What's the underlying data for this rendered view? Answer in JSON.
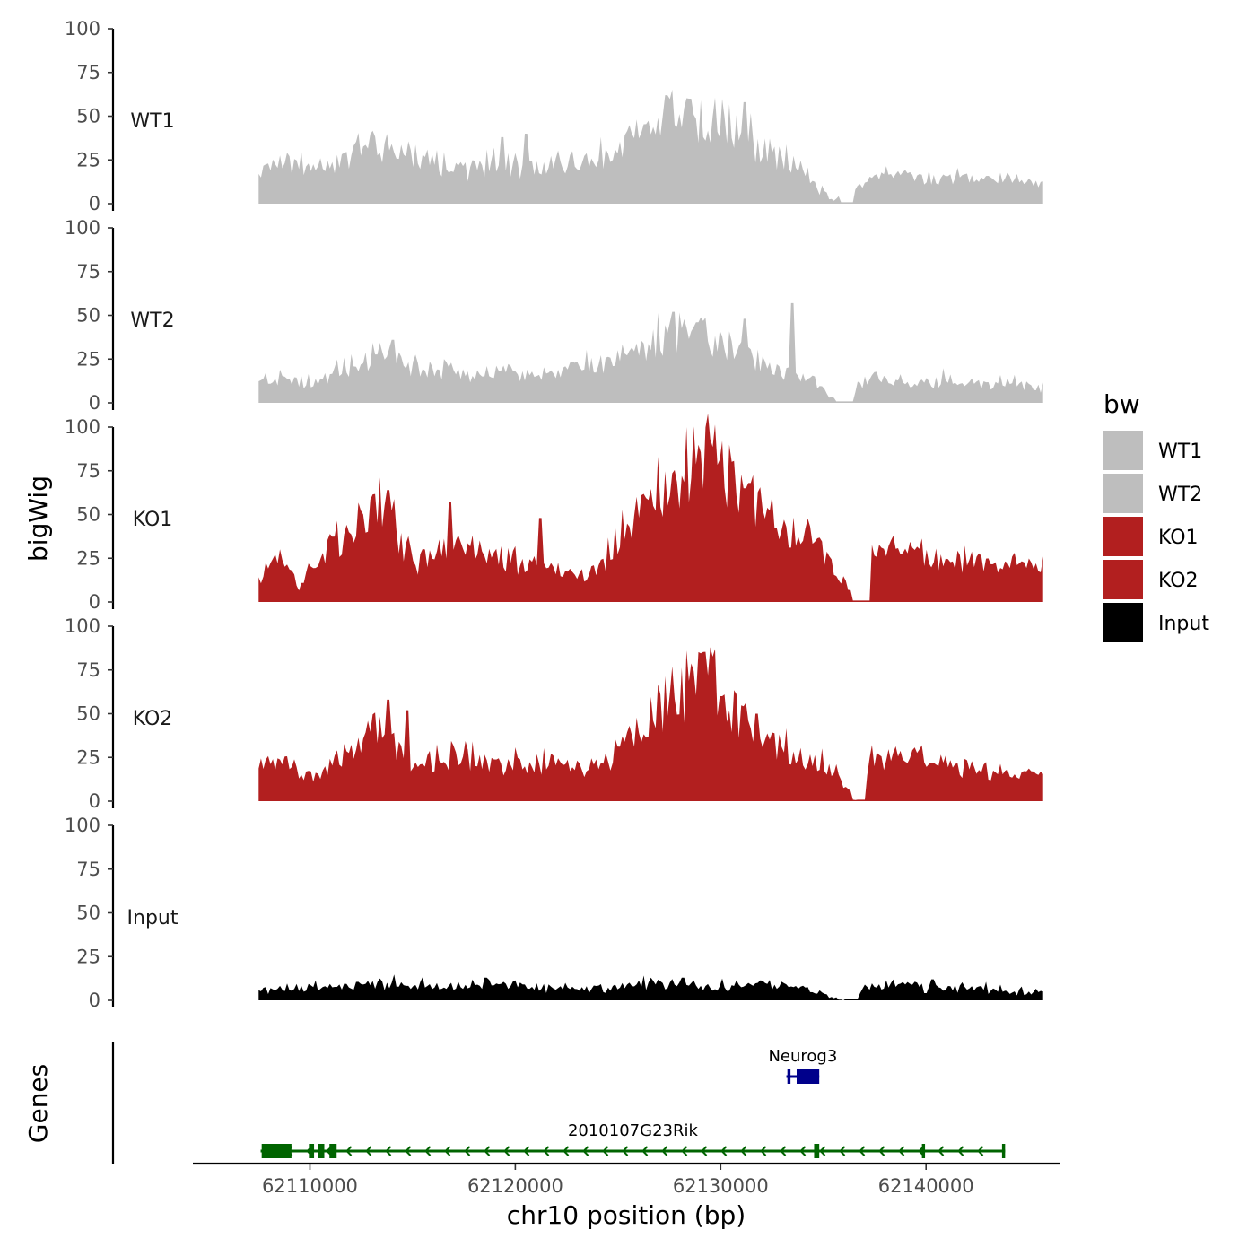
{
  "chart_data": {
    "type": "area",
    "layout": "stacked-tracks",
    "y_axis_title": "bigWig",
    "genes_axis_title": "Genes",
    "x_axis_title": "chr10 position (bp)",
    "x_range": [
      62104300,
      62146500
    ],
    "x_ticks": [
      62110000,
      62120000,
      62130000,
      62140000
    ],
    "x_tick_labels": [
      "62110000",
      "62120000",
      "62130000",
      "62140000"
    ],
    "signal_x_range": [
      62107500,
      62145700
    ],
    "y_range": [
      0,
      100
    ],
    "y_ticks": [
      0,
      25,
      50,
      75,
      100
    ],
    "y_tick_labels": [
      "0",
      "25",
      "50",
      "75",
      "100"
    ],
    "legend": {
      "title": "bw",
      "entries": [
        {
          "label": "WT1",
          "color": "#bebebe"
        },
        {
          "label": "WT2",
          "color": "#bebebe"
        },
        {
          "label": "KO1",
          "color": "#b21f1f"
        },
        {
          "label": "KO2",
          "color": "#b21f1f"
        },
        {
          "label": "Input",
          "color": "#000000"
        }
      ]
    },
    "tracks": [
      {
        "name": "WT1",
        "color": "#bebebe",
        "profile": [
          [
            0,
            18
          ],
          [
            0.03,
            24
          ],
          [
            0.06,
            20
          ],
          [
            0.09,
            22
          ],
          [
            0.12,
            27
          ],
          [
            0.15,
            34
          ],
          [
            0.18,
            28
          ],
          [
            0.21,
            24
          ],
          [
            0.24,
            22
          ],
          [
            0.27,
            19
          ],
          [
            0.3,
            22
          ],
          [
            0.33,
            20
          ],
          [
            0.36,
            17
          ],
          [
            0.39,
            22
          ],
          [
            0.42,
            24
          ],
          [
            0.45,
            27
          ],
          [
            0.48,
            35
          ],
          [
            0.51,
            44
          ],
          [
            0.54,
            50
          ],
          [
            0.57,
            48
          ],
          [
            0.6,
            40
          ],
          [
            0.63,
            34
          ],
          [
            0.66,
            26
          ],
          [
            0.69,
            18
          ],
          [
            0.71,
            10
          ],
          [
            0.73,
            2
          ],
          [
            0.75,
            4
          ],
          [
            0.78,
            14
          ],
          [
            0.81,
            16
          ],
          [
            0.84,
            14
          ],
          [
            0.87,
            13
          ],
          [
            0.9,
            14
          ],
          [
            0.93,
            13
          ],
          [
            0.96,
            14
          ],
          [
            1,
            10
          ]
        ],
        "spikes": [
          [
            0.31,
            38
          ],
          [
            0.62,
            58
          ],
          [
            0.52,
            62
          ],
          [
            0.55,
            60
          ],
          [
            0.34,
            40
          ]
        ],
        "dropouts": [
          [
            0.74,
            0.76
          ]
        ],
        "seed": 11
      },
      {
        "name": "WT2",
        "color": "#bebebe",
        "profile": [
          [
            0,
            12
          ],
          [
            0.03,
            14
          ],
          [
            0.06,
            11
          ],
          [
            0.09,
            15
          ],
          [
            0.12,
            19
          ],
          [
            0.15,
            26
          ],
          [
            0.18,
            23
          ],
          [
            0.21,
            19
          ],
          [
            0.24,
            18
          ],
          [
            0.27,
            17
          ],
          [
            0.3,
            18
          ],
          [
            0.33,
            16
          ],
          [
            0.36,
            15
          ],
          [
            0.39,
            18
          ],
          [
            0.42,
            21
          ],
          [
            0.45,
            24
          ],
          [
            0.48,
            29
          ],
          [
            0.51,
            36
          ],
          [
            0.54,
            42
          ],
          [
            0.57,
            39
          ],
          [
            0.6,
            30
          ],
          [
            0.63,
            24
          ],
          [
            0.66,
            20
          ],
          [
            0.69,
            16
          ],
          [
            0.71,
            11
          ],
          [
            0.73,
            2
          ],
          [
            0.75,
            3
          ],
          [
            0.78,
            14
          ],
          [
            0.81,
            12
          ],
          [
            0.84,
            10
          ],
          [
            0.87,
            12
          ],
          [
            0.9,
            11
          ],
          [
            0.93,
            10
          ],
          [
            0.96,
            12
          ],
          [
            1,
            8
          ]
        ],
        "spikes": [
          [
            0.17,
            36
          ],
          [
            0.68,
            57
          ],
          [
            0.62,
            48
          ],
          [
            0.53,
            52
          ]
        ],
        "dropouts": [
          [
            0.735,
            0.76
          ]
        ],
        "seed": 23
      },
      {
        "name": "KO1",
        "color": "#b21f1f",
        "profile": [
          [
            0,
            15
          ],
          [
            0.03,
            26
          ],
          [
            0.05,
            8
          ],
          [
            0.08,
            26
          ],
          [
            0.1,
            33
          ],
          [
            0.13,
            42
          ],
          [
            0.16,
            52
          ],
          [
            0.18,
            36
          ],
          [
            0.2,
            21
          ],
          [
            0.22,
            26
          ],
          [
            0.25,
            32
          ],
          [
            0.28,
            28
          ],
          [
            0.31,
            24
          ],
          [
            0.34,
            22
          ],
          [
            0.37,
            18
          ],
          [
            0.4,
            16
          ],
          [
            0.42,
            14
          ],
          [
            0.45,
            28
          ],
          [
            0.48,
            44
          ],
          [
            0.51,
            58
          ],
          [
            0.54,
            64
          ],
          [
            0.57,
            82
          ],
          [
            0.6,
            72
          ],
          [
            0.63,
            60
          ],
          [
            0.66,
            45
          ],
          [
            0.69,
            36
          ],
          [
            0.72,
            30
          ],
          [
            0.74,
            14
          ],
          [
            0.76,
            3
          ],
          [
            0.78,
            24
          ],
          [
            0.81,
            28
          ],
          [
            0.84,
            26
          ],
          [
            0.87,
            22
          ],
          [
            0.9,
            21
          ],
          [
            0.93,
            22
          ],
          [
            0.96,
            22
          ],
          [
            1,
            20
          ]
        ],
        "spikes": [
          [
            0.165,
            64
          ],
          [
            0.245,
            57
          ],
          [
            0.625,
            68
          ],
          [
            0.625,
            68
          ],
          [
            0.62,
            65
          ],
          [
            0.36,
            48
          ]
        ],
        "dropouts": [
          [
            0.755,
            0.78
          ]
        ],
        "seed": 37
      },
      {
        "name": "KO2",
        "color": "#b21f1f",
        "profile": [
          [
            0,
            22
          ],
          [
            0.03,
            24
          ],
          [
            0.06,
            16
          ],
          [
            0.08,
            14
          ],
          [
            0.1,
            22
          ],
          [
            0.13,
            34
          ],
          [
            0.16,
            46
          ],
          [
            0.18,
            28
          ],
          [
            0.2,
            16
          ],
          [
            0.22,
            22
          ],
          [
            0.25,
            24
          ],
          [
            0.28,
            22
          ],
          [
            0.31,
            20
          ],
          [
            0.34,
            20
          ],
          [
            0.37,
            22
          ],
          [
            0.4,
            19
          ],
          [
            0.42,
            18
          ],
          [
            0.45,
            24
          ],
          [
            0.48,
            36
          ],
          [
            0.51,
            50
          ],
          [
            0.54,
            60
          ],
          [
            0.57,
            74
          ],
          [
            0.6,
            54
          ],
          [
            0.63,
            42
          ],
          [
            0.66,
            30
          ],
          [
            0.69,
            26
          ],
          [
            0.72,
            22
          ],
          [
            0.74,
            12
          ],
          [
            0.76,
            1
          ],
          [
            0.78,
            24
          ],
          [
            0.81,
            26
          ],
          [
            0.84,
            24
          ],
          [
            0.87,
            22
          ],
          [
            0.9,
            18
          ],
          [
            0.93,
            16
          ],
          [
            0.96,
            15
          ],
          [
            1,
            14
          ]
        ],
        "spikes": [
          [
            0.165,
            58
          ],
          [
            0.19,
            52
          ],
          [
            0.635,
            50
          ],
          [
            0.59,
            60
          ]
        ],
        "dropouts": [
          [
            0.755,
            0.775
          ]
        ],
        "seed": 53
      },
      {
        "name": "Input",
        "color": "#000000",
        "profile": [
          [
            0,
            5
          ],
          [
            0.05,
            7
          ],
          [
            0.1,
            8
          ],
          [
            0.15,
            9
          ],
          [
            0.2,
            8
          ],
          [
            0.25,
            7
          ],
          [
            0.3,
            9
          ],
          [
            0.35,
            8
          ],
          [
            0.4,
            6
          ],
          [
            0.45,
            7
          ],
          [
            0.5,
            9
          ],
          [
            0.55,
            8
          ],
          [
            0.6,
            7
          ],
          [
            0.65,
            9
          ],
          [
            0.7,
            6
          ],
          [
            0.73,
            2
          ],
          [
            0.75,
            0
          ],
          [
            0.78,
            8
          ],
          [
            0.82,
            9
          ],
          [
            0.86,
            6
          ],
          [
            0.9,
            7
          ],
          [
            0.95,
            6
          ],
          [
            1,
            4
          ]
        ],
        "spikes": [
          [
            0.29,
            13
          ],
          [
            0.54,
            13
          ],
          [
            0.86,
            12
          ]
        ],
        "dropouts": [
          [
            0.745,
            0.765
          ]
        ],
        "seed": 71
      }
    ],
    "genes": [
      {
        "name": "Neurog3",
        "color": "#00008b",
        "strand": "-",
        "row": 1,
        "start": 62133200,
        "end": 62134800,
        "exons": [
          [
            62133250,
            62133400
          ],
          [
            62133700,
            62134800
          ]
        ]
      },
      {
        "name": "2010107G23Rik",
        "color": "#006400",
        "strand": "-",
        "row": 2,
        "start": 62107600,
        "end": 62143850,
        "exons": [
          [
            62107650,
            62109100
          ],
          [
            62109950,
            62110200
          ],
          [
            62110400,
            62110700
          ],
          [
            62110950,
            62111300
          ],
          [
            62134550,
            62134800
          ],
          [
            62139800,
            62139950
          ],
          [
            62143700,
            62143850
          ]
        ]
      }
    ]
  }
}
